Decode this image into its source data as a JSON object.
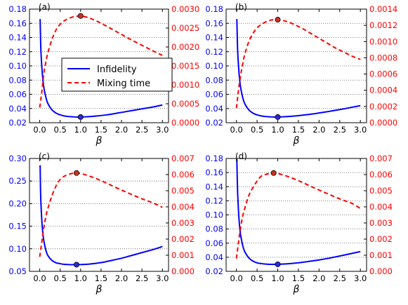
{
  "colors": {
    "infidelity": "#0000ff",
    "mixing_time": "#ff0000",
    "marker_blue": "#2a2ad6",
    "marker_red": "#d03020",
    "axis": "#000000",
    "grid": "#555555"
  },
  "legend": {
    "infidelity": "Infidelity",
    "mixing_time": "Mixing time"
  },
  "chart_data": [
    {
      "panel": "(a)",
      "type": "line",
      "xlabel": "β",
      "xlim": [
        -0.25,
        3.15
      ],
      "xticks": [
        "0.0",
        "0.5",
        "1.0",
        "1.5",
        "2.0",
        "2.5",
        "3.0"
      ],
      "y_left": {
        "lim": [
          0.02,
          0.18
        ],
        "ticks": [
          "0.02",
          "0.04",
          "0.06",
          "0.08",
          "0.10",
          "0.12",
          "0.14",
          "0.16",
          "0.18"
        ]
      },
      "y_right": {
        "lim": [
          0,
          0.003
        ],
        "ticks": [
          "0.0000",
          "0.0005",
          "0.0010",
          "0.0015",
          "0.0020",
          "0.0025",
          "0.0030"
        ]
      },
      "grid": "horizontal dotted",
      "legend_position": "center-left",
      "series": [
        {
          "name": "Infidelity",
          "axis": "left",
          "style": "solid",
          "x": [
            0.01,
            0.02,
            0.03,
            0.05,
            0.07,
            0.1,
            0.15,
            0.2,
            0.3,
            0.4,
            0.5,
            0.6,
            0.7,
            0.8,
            0.9,
            1.0,
            1.2,
            1.4,
            1.6,
            1.8,
            2.0,
            2.2,
            2.4,
            2.6,
            2.8,
            3.0
          ],
          "y": [
            0.166,
            0.14,
            0.12,
            0.1,
            0.085,
            0.07,
            0.056,
            0.047,
            0.038,
            0.0335,
            0.031,
            0.0295,
            0.0287,
            0.0283,
            0.028,
            0.028,
            0.0285,
            0.0295,
            0.0308,
            0.0325,
            0.0345,
            0.0365,
            0.0385,
            0.0405,
            0.0425,
            0.045
          ]
        },
        {
          "name": "Mixing time",
          "axis": "right",
          "style": "dashed",
          "x": [
            0.0,
            0.05,
            0.1,
            0.15,
            0.2,
            0.3,
            0.4,
            0.5,
            0.6,
            0.7,
            0.8,
            0.9,
            1.0,
            1.2,
            1.4,
            1.6,
            1.8,
            2.0,
            2.2,
            2.4,
            2.6,
            2.8,
            3.0
          ],
          "y": [
            0.0004,
            0.0008,
            0.0013,
            0.0016,
            0.00185,
            0.0022,
            0.00245,
            0.0026,
            0.00269,
            0.00275,
            0.00279,
            0.00281,
            0.00282,
            0.00277,
            0.00268,
            0.00257,
            0.00245,
            0.00233,
            0.00221,
            0.0021,
            0.00199,
            0.00188,
            0.00178
          ]
        }
      ],
      "markers": [
        {
          "axis": "left",
          "x": 1.0,
          "y": 0.028
        },
        {
          "axis": "right",
          "x": 1.0,
          "y": 0.00282
        }
      ]
    },
    {
      "panel": "(b)",
      "type": "line",
      "xlabel": "β",
      "xlim": [
        -0.25,
        3.15
      ],
      "xticks": [
        "0.0",
        "0.5",
        "1.0",
        "1.5",
        "2.0",
        "2.5",
        "3.0"
      ],
      "y_left": {
        "lim": [
          0.02,
          0.18
        ],
        "ticks": [
          "0.02",
          "0.04",
          "0.06",
          "0.08",
          "0.10",
          "0.12",
          "0.14",
          "0.16",
          "0.18"
        ]
      },
      "y_right": {
        "lim": [
          0,
          0.0014
        ],
        "ticks": [
          "0.0000",
          "0.0002",
          "0.0004",
          "0.0006",
          "0.0008",
          "0.0010",
          "0.0012",
          "0.0014"
        ]
      },
      "grid": "horizontal dotted",
      "series": [
        {
          "name": "Infidelity",
          "axis": "left",
          "style": "solid",
          "x": [
            0.01,
            0.02,
            0.03,
            0.05,
            0.07,
            0.1,
            0.15,
            0.2,
            0.3,
            0.4,
            0.5,
            0.6,
            0.7,
            0.8,
            0.9,
            1.0,
            1.2,
            1.4,
            1.6,
            1.8,
            2.0,
            2.2,
            2.4,
            2.6,
            2.8,
            3.0
          ],
          "y": [
            0.166,
            0.14,
            0.12,
            0.1,
            0.085,
            0.07,
            0.056,
            0.047,
            0.038,
            0.0335,
            0.031,
            0.0295,
            0.0287,
            0.0283,
            0.028,
            0.028,
            0.0285,
            0.0294,
            0.0306,
            0.032,
            0.0337,
            0.0355,
            0.0375,
            0.0395,
            0.0418,
            0.044
          ]
        },
        {
          "name": "Mixing time",
          "axis": "right",
          "style": "dashed",
          "x": [
            0.0,
            0.05,
            0.1,
            0.15,
            0.2,
            0.3,
            0.4,
            0.5,
            0.6,
            0.7,
            0.8,
            0.9,
            1.0,
            1.2,
            1.4,
            1.6,
            1.8,
            2.0,
            2.2,
            2.4,
            2.6,
            2.8,
            3.0
          ],
          "y": [
            0.00018,
            0.0004,
            0.00058,
            0.00072,
            0.00084,
            0.001,
            0.0011,
            0.00117,
            0.00121,
            0.00124,
            0.00126,
            0.00127,
            0.00127,
            0.00125,
            0.00121,
            0.00116,
            0.0011,
            0.00104,
            0.00098,
            0.00092,
            0.00087,
            0.00082,
            0.00078
          ]
        }
      ],
      "markers": [
        {
          "axis": "left",
          "x": 1.0,
          "y": 0.028
        },
        {
          "axis": "right",
          "x": 1.0,
          "y": 0.00127
        }
      ]
    },
    {
      "panel": "(c)",
      "type": "line",
      "xlabel": "β",
      "xlim": [
        -0.25,
        3.15
      ],
      "xticks": [
        "0.0",
        "0.5",
        "1.0",
        "1.5",
        "2.0",
        "2.5",
        "3.0"
      ],
      "y_left": {
        "lim": [
          0.05,
          0.3
        ],
        "ticks": [
          "0.05",
          "0.10",
          "0.15",
          "0.20",
          "0.25",
          "0.30"
        ]
      },
      "y_right": {
        "lim": [
          0,
          0.007
        ],
        "ticks": [
          "0.000",
          "0.001",
          "0.002",
          "0.003",
          "0.004",
          "0.005",
          "0.006",
          "0.007"
        ]
      },
      "grid": "horizontal dotted",
      "series": [
        {
          "name": "Infidelity",
          "axis": "left",
          "style": "solid",
          "x": [
            0.01,
            0.02,
            0.03,
            0.05,
            0.07,
            0.1,
            0.15,
            0.2,
            0.3,
            0.4,
            0.5,
            0.6,
            0.7,
            0.8,
            0.9,
            1.0,
            1.2,
            1.4,
            1.6,
            1.8,
            2.0,
            2.2,
            2.4,
            2.6,
            2.8,
            3.0
          ],
          "y": [
            0.285,
            0.23,
            0.2,
            0.165,
            0.14,
            0.118,
            0.097,
            0.085,
            0.074,
            0.069,
            0.067,
            0.0655,
            0.065,
            0.0648,
            0.0648,
            0.065,
            0.066,
            0.068,
            0.071,
            0.075,
            0.079,
            0.084,
            0.089,
            0.094,
            0.099,
            0.105
          ]
        },
        {
          "name": "Mixing time",
          "axis": "right",
          "style": "dashed",
          "x": [
            0.0,
            0.05,
            0.1,
            0.15,
            0.2,
            0.3,
            0.4,
            0.5,
            0.6,
            0.7,
            0.8,
            0.9,
            1.0,
            1.2,
            1.4,
            1.6,
            1.8,
            2.0,
            2.2,
            2.4,
            2.6,
            2.8,
            3.0
          ],
          "y": [
            0.0009,
            0.0018,
            0.0027,
            0.0034,
            0.0039,
            0.0047,
            0.0053,
            0.0057,
            0.0059,
            0.006,
            0.00608,
            0.0061,
            0.00607,
            0.00592,
            0.00573,
            0.00551,
            0.00527,
            0.00504,
            0.00482,
            0.0046,
            0.0044,
            0.00421,
            0.00397
          ]
        }
      ],
      "markers": [
        {
          "axis": "left",
          "x": 0.9,
          "y": 0.0648
        },
        {
          "axis": "right",
          "x": 0.9,
          "y": 0.0061
        }
      ]
    },
    {
      "panel": "(d)",
      "type": "line",
      "xlabel": "β",
      "xlim": [
        -0.25,
        3.15
      ],
      "xticks": [
        "0.0",
        "0.5",
        "1.0",
        "1.5",
        "2.0",
        "2.5",
        "3.0"
      ],
      "y_left": {
        "lim": [
          0.02,
          0.18
        ],
        "ticks": [
          "0.02",
          "0.04",
          "0.06",
          "0.08",
          "0.10",
          "0.12",
          "0.14",
          "0.16",
          "0.18"
        ]
      },
      "y_right": {
        "lim": [
          0,
          0.007
        ],
        "ticks": [
          "0.000",
          "0.001",
          "0.002",
          "0.003",
          "0.004",
          "0.005",
          "0.006",
          "0.007"
        ]
      },
      "grid": "horizontal dotted",
      "series": [
        {
          "name": "Infidelity",
          "axis": "left",
          "style": "solid",
          "x": [
            0.01,
            0.02,
            0.03,
            0.05,
            0.07,
            0.1,
            0.15,
            0.2,
            0.3,
            0.4,
            0.5,
            0.6,
            0.7,
            0.8,
            0.9,
            1.0,
            1.2,
            1.4,
            1.6,
            1.8,
            2.0,
            2.2,
            2.4,
            2.6,
            2.8,
            3.0
          ],
          "y": [
            0.178,
            0.15,
            0.13,
            0.105,
            0.088,
            0.072,
            0.057,
            0.048,
            0.039,
            0.0345,
            0.032,
            0.031,
            0.0303,
            0.03,
            0.03,
            0.03,
            0.0305,
            0.0315,
            0.0328,
            0.0345,
            0.0362,
            0.0382,
            0.0405,
            0.043,
            0.0455,
            0.048
          ]
        },
        {
          "name": "Mixing time",
          "axis": "right",
          "style": "dashed",
          "x": [
            0.0,
            0.05,
            0.1,
            0.15,
            0.2,
            0.3,
            0.4,
            0.5,
            0.6,
            0.7,
            0.8,
            0.9,
            1.0,
            1.2,
            1.4,
            1.6,
            1.8,
            2.0,
            2.2,
            2.4,
            2.6,
            2.8,
            3.0
          ],
          "y": [
            0.0008,
            0.0018,
            0.0027,
            0.0034,
            0.0039,
            0.0047,
            0.0052,
            0.0056,
            0.0059,
            0.006,
            0.00607,
            0.0061,
            0.00607,
            0.00592,
            0.00573,
            0.00551,
            0.00527,
            0.00504,
            0.00482,
            0.0046,
            0.0044,
            0.00421,
            0.0039
          ]
        }
      ],
      "markers": [
        {
          "axis": "left",
          "x": 1.0,
          "y": 0.03
        },
        {
          "axis": "right",
          "x": 0.9,
          "y": 0.0061
        }
      ]
    }
  ]
}
